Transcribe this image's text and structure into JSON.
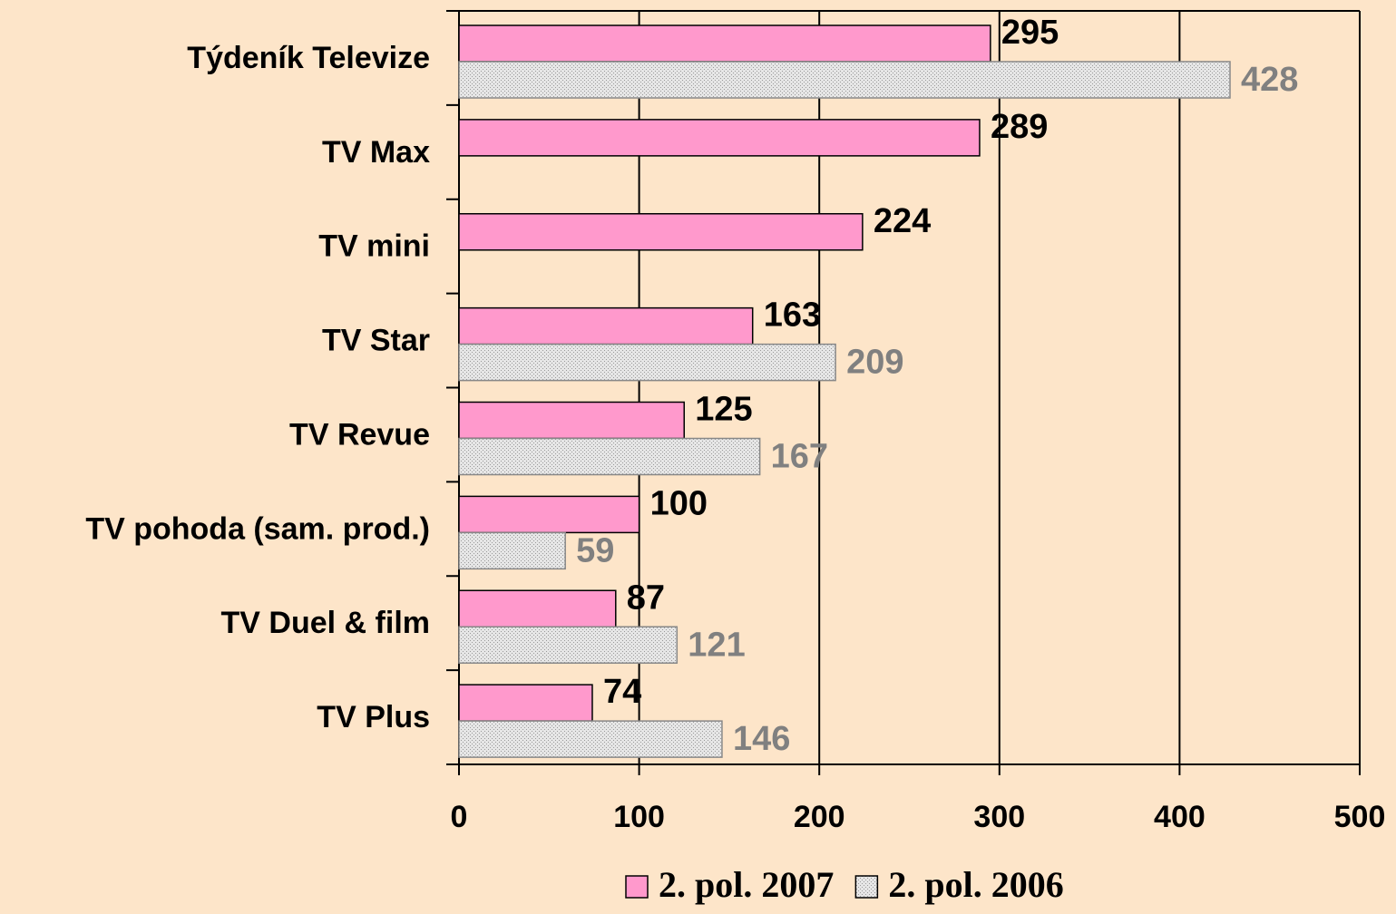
{
  "chart_data": {
    "type": "bar",
    "orientation": "horizontal",
    "categories": [
      "Týdeník Televize",
      "TV Max",
      "TV mini",
      "TV Star",
      "TV Revue",
      "TV pohoda (sam. prod.)",
      "TV Duel & film",
      "TV Plus"
    ],
    "series": [
      {
        "name": "2. pol. 2007",
        "color": "#ff99cc",
        "label_color": "#000000",
        "values": [
          295,
          289,
          224,
          163,
          125,
          100,
          87,
          74
        ]
      },
      {
        "name": "2. pol. 2006",
        "color": "#d4d4d4",
        "label_color": "#808080",
        "values": [
          428,
          null,
          null,
          209,
          167,
          59,
          121,
          146
        ]
      }
    ],
    "xlim": [
      0,
      500
    ],
    "xticks": [
      0,
      100,
      200,
      300,
      400,
      500
    ],
    "grid": true,
    "legend": "bottom"
  }
}
